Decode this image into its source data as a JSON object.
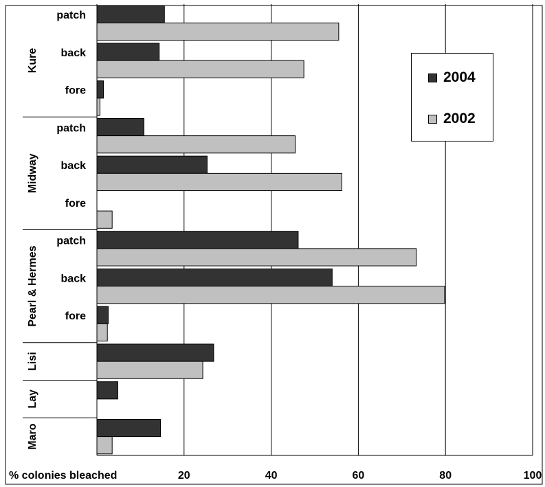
{
  "chart_data": {
    "type": "bar",
    "orientation": "horizontal",
    "title": "",
    "xlabel": "% colonies bleached",
    "xlim": [
      0,
      100
    ],
    "xticks": [
      20,
      40,
      60,
      80,
      100
    ],
    "grid": true,
    "legend_position": "top-right",
    "series": [
      {
        "name": "2004",
        "color": "#333333"
      },
      {
        "name": "2002",
        "color": "#c0c0c0"
      }
    ],
    "groups": [
      {
        "site": "Kure",
        "habitats": [
          {
            "habitat": "patch",
            "values": [
              15.5,
              55.5
            ]
          },
          {
            "habitat": "back",
            "values": [
              14.3,
              47.5
            ]
          },
          {
            "habitat": "fore",
            "values": [
              1.5,
              0.7
            ]
          }
        ]
      },
      {
        "site": "Midway",
        "habitats": [
          {
            "habitat": "patch",
            "values": [
              10.8,
              45.5
            ]
          },
          {
            "habitat": "back",
            "values": [
              25.3,
              56.2
            ]
          },
          {
            "habitat": "fore",
            "values": [
              0,
              3.5
            ]
          }
        ]
      },
      {
        "site": "Pearl & Hermes",
        "habitats": [
          {
            "habitat": "patch",
            "values": [
              46.2,
              73.3
            ]
          },
          {
            "habitat": "back",
            "values": [
              54.0,
              79.8
            ]
          },
          {
            "habitat": "fore",
            "values": [
              2.6,
              2.4
            ]
          }
        ]
      },
      {
        "site": "Lisi",
        "habitats": [
          {
            "habitat": "",
            "values": [
              26.8,
              24.3
            ]
          }
        ]
      },
      {
        "site": "Lay",
        "habitats": [
          {
            "habitat": "",
            "values": [
              4.8,
              null
            ]
          }
        ]
      },
      {
        "site": "Maro",
        "habitats": [
          {
            "habitat": "",
            "values": [
              14.6,
              3.5
            ]
          }
        ]
      }
    ]
  }
}
